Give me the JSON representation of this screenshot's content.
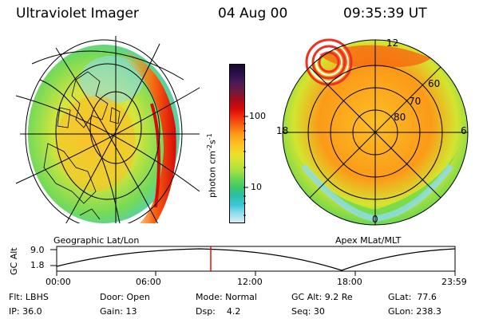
{
  "header": {
    "title": "Ultraviolet Imager",
    "date": "04 Aug 00",
    "time": "09:35:39 UT"
  },
  "colorbar": {
    "unit": "photon cm",
    "unit_exp1": "-2",
    "unit_s": "s",
    "unit_exp2": "-1",
    "tick_high": "100",
    "tick_low": "10",
    "colors": [
      "#1a0a2e",
      "#2a0f4a",
      "#4a1a5a",
      "#701a3c",
      "#a00c1e",
      "#d80a0a",
      "#f0300c",
      "#f86810",
      "#fc9a18",
      "#fcc024",
      "#f0dc28",
      "#d4e430",
      "#a8e040",
      "#6cd850",
      "#3cc86c",
      "#28c0a8",
      "#3cc8d8",
      "#90dcec",
      "#d8ecf4"
    ]
  },
  "left_panel": {
    "caption": "Geographic Lat/Lon"
  },
  "right_panel": {
    "caption": "Apex MLat/MLT",
    "mlt_12": "12",
    "mlt_18": "18",
    "mlt_6": "6",
    "mlt_0": "0",
    "lat_60": "60",
    "lat_70": "70",
    "lat_80": "80"
  },
  "altitude_plot": {
    "ylabel": "GC Alt",
    "y_high": "9.0",
    "y_low": "1.8",
    "x_ticks": [
      "00:00",
      "06:00",
      "12:00",
      "18:00",
      "23:59"
    ],
    "marker_color": "#e00000"
  },
  "info": {
    "flt": "Flt: LBHS",
    "ip": "IP: 36.0",
    "door": "Door: Open",
    "gain": "Gain: 13",
    "mode": "Mode: Normal",
    "dsp": "Dsp:    4.2",
    "gcalt": "GC Alt: 9.2 Re",
    "seq": "Seq: 30",
    "glat": "GLat:  77.6",
    "glon": "GLon: 238.3"
  }
}
